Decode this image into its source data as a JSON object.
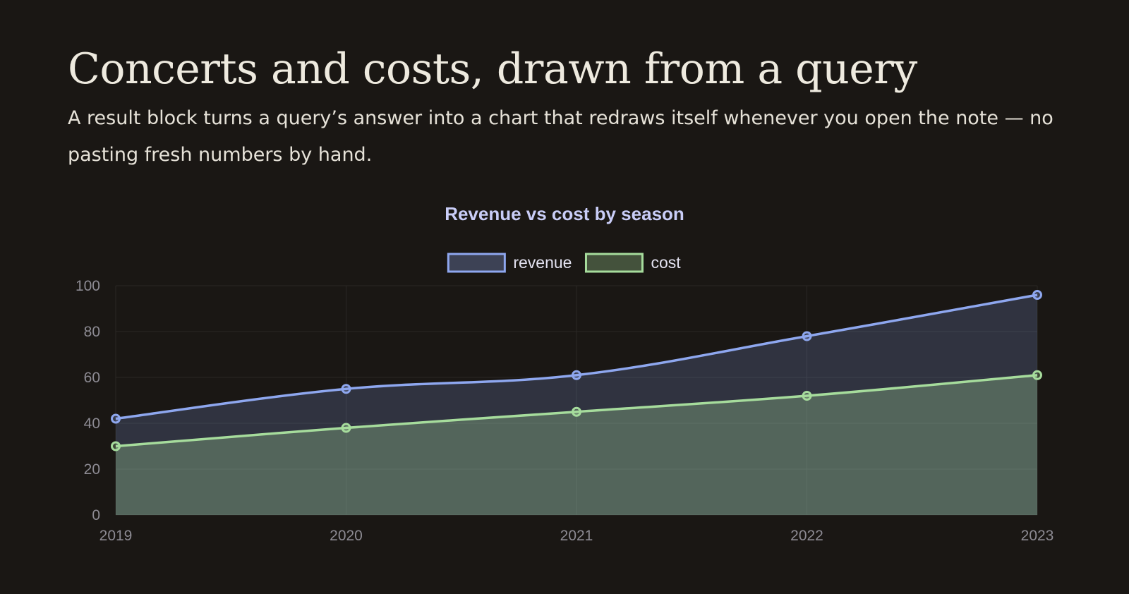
{
  "page": {
    "title": "Concerts and costs, drawn from a query",
    "subtitle": "A result block turns a query’s answer into a chart that redraws itself whenever you open the note — no pasting fresh numbers by hand."
  },
  "chart_data": {
    "type": "area",
    "title": "Revenue vs cost by season",
    "xlabel": "",
    "ylabel": "",
    "categories": [
      "2019",
      "2020",
      "2021",
      "2022",
      "2023"
    ],
    "ylim": [
      0,
      100
    ],
    "yticks": [
      0,
      20,
      40,
      60,
      80,
      100
    ],
    "grid": true,
    "legend": "top-center",
    "series": [
      {
        "name": "revenue",
        "values": [
          42,
          55,
          61,
          78,
          96
        ],
        "color": "#8ea7ef"
      },
      {
        "name": "cost",
        "values": [
          30,
          38,
          45,
          52,
          61
        ],
        "color": "#a6dc9c"
      }
    ]
  },
  "colors": {
    "background": "#1a1714",
    "grid": "#2a2725",
    "tick": "#8d8b93"
  }
}
